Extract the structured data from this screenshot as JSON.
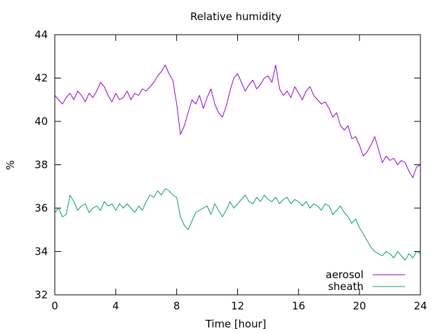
{
  "chart_data": {
    "type": "line",
    "title": "Relative humidity",
    "xlabel": "Time [hour]",
    "ylabel": "%",
    "xlim": [
      0,
      24
    ],
    "ylim": [
      32,
      44
    ],
    "xticks": [
      0,
      4,
      8,
      12,
      16,
      20,
      24
    ],
    "yticks": [
      32,
      34,
      36,
      38,
      40,
      42,
      44
    ],
    "grid": false,
    "legend_position": "bottom-right",
    "series": [
      {
        "name": "aerosol",
        "color": "#9400d3",
        "x": [
          0,
          0.25,
          0.5,
          0.75,
          1,
          1.25,
          1.5,
          1.75,
          2,
          2.25,
          2.5,
          2.75,
          3,
          3.25,
          3.5,
          3.75,
          4,
          4.25,
          4.5,
          4.75,
          5,
          5.25,
          5.5,
          5.75,
          6,
          6.25,
          6.5,
          6.75,
          7,
          7.25,
          7.5,
          7.75,
          8,
          8.25,
          8.5,
          8.75,
          9,
          9.25,
          9.5,
          9.75,
          10,
          10.25,
          10.5,
          10.75,
          11,
          11.25,
          11.5,
          11.75,
          12,
          12.25,
          12.5,
          12.75,
          13,
          13.25,
          13.5,
          13.75,
          14,
          14.25,
          14.5,
          14.75,
          15,
          15.25,
          15.5,
          15.75,
          16,
          16.25,
          16.5,
          16.75,
          17,
          17.25,
          17.5,
          17.75,
          18,
          18.25,
          18.5,
          18.75,
          19,
          19.25,
          19.5,
          19.75,
          20,
          20.25,
          20.5,
          20.75,
          21,
          21.25,
          21.5,
          21.75,
          22,
          22.25,
          22.5,
          22.75,
          23,
          23.25,
          23.5,
          23.75,
          24
        ],
        "y": [
          41.2,
          41.0,
          40.8,
          41.1,
          41.3,
          41.0,
          41.4,
          41.2,
          40.9,
          41.3,
          41.1,
          41.4,
          41.8,
          41.6,
          41.2,
          40.9,
          41.3,
          41.0,
          41.1,
          41.4,
          41.0,
          41.3,
          41.2,
          41.5,
          41.4,
          41.6,
          41.8,
          42.1,
          42.3,
          42.6,
          42.2,
          41.9,
          40.8,
          39.4,
          39.8,
          40.4,
          41.0,
          40.8,
          41.2,
          40.6,
          41.1,
          41.5,
          40.8,
          40.4,
          40.2,
          40.7,
          41.4,
          42.0,
          42.2,
          41.8,
          41.4,
          41.7,
          41.9,
          41.5,
          41.7,
          42.0,
          42.1,
          41.8,
          42.6,
          41.5,
          41.2,
          41.4,
          41.1,
          41.6,
          41.3,
          41.0,
          41.4,
          41.6,
          41.2,
          41.0,
          40.8,
          40.9,
          40.6,
          40.2,
          40.4,
          39.8,
          39.6,
          39.8,
          39.2,
          39.3,
          38.9,
          38.4,
          38.6,
          38.9,
          39.3,
          38.7,
          38.1,
          38.4,
          38.2,
          38.3,
          38.0,
          38.2,
          38.1,
          37.7,
          37.4,
          37.9,
          38.0
        ]
      },
      {
        "name": "sheath",
        "color": "#009e73",
        "x": [
          0,
          0.25,
          0.5,
          0.75,
          1,
          1.25,
          1.5,
          1.75,
          2,
          2.25,
          2.5,
          2.75,
          3,
          3.25,
          3.5,
          3.75,
          4,
          4.25,
          4.5,
          4.75,
          5,
          5.25,
          5.5,
          5.75,
          6,
          6.25,
          6.5,
          6.75,
          7,
          7.25,
          7.5,
          7.75,
          8,
          8.25,
          8.5,
          8.75,
          9,
          9.25,
          9.5,
          9.75,
          10,
          10.25,
          10.5,
          10.75,
          11,
          11.25,
          11.5,
          11.75,
          12,
          12.25,
          12.5,
          12.75,
          13,
          13.25,
          13.5,
          13.75,
          14,
          14.25,
          14.5,
          14.75,
          15,
          15.25,
          15.5,
          15.75,
          16,
          16.25,
          16.5,
          16.75,
          17,
          17.25,
          17.5,
          17.75,
          18,
          18.25,
          18.5,
          18.75,
          19,
          19.25,
          19.5,
          19.75,
          20,
          20.25,
          20.5,
          20.75,
          21,
          21.25,
          21.5,
          21.75,
          22,
          22.25,
          22.5,
          22.75,
          23,
          23.25,
          23.5,
          23.75,
          24
        ],
        "y": [
          35.8,
          36.0,
          35.6,
          35.7,
          36.6,
          36.3,
          35.9,
          36.1,
          36.2,
          35.8,
          36.0,
          36.1,
          35.9,
          36.3,
          36.1,
          36.2,
          35.9,
          36.2,
          36.0,
          36.2,
          36.0,
          35.8,
          36.1,
          35.9,
          36.3,
          36.6,
          36.5,
          36.8,
          36.6,
          36.9,
          36.8,
          36.6,
          36.5,
          35.6,
          35.2,
          35.0,
          35.4,
          35.8,
          35.9,
          36.0,
          36.1,
          35.7,
          36.2,
          35.9,
          35.6,
          35.9,
          36.3,
          36.0,
          36.2,
          36.4,
          36.6,
          36.3,
          36.2,
          36.5,
          36.3,
          36.6,
          36.4,
          36.3,
          36.5,
          36.2,
          36.4,
          36.5,
          36.2,
          36.4,
          36.3,
          36.1,
          36.3,
          36.0,
          36.2,
          36.1,
          35.9,
          36.2,
          36.1,
          35.7,
          35.9,
          36.1,
          35.8,
          35.6,
          35.3,
          35.5,
          35.1,
          34.8,
          34.5,
          34.2,
          34.0,
          33.9,
          33.8,
          34.0,
          33.9,
          33.7,
          34.0,
          33.8,
          33.6,
          33.9,
          33.7,
          34.0,
          33.9
        ]
      }
    ]
  }
}
